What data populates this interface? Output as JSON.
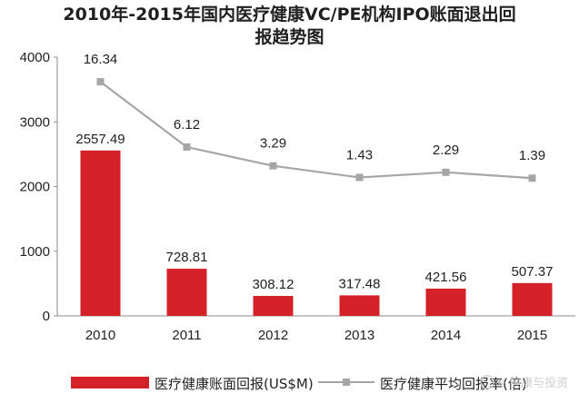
{
  "title": {
    "line1": "2010年-2015年国内医疗健康VC/PE机构IPO账面退出回",
    "line2": "报趋势图"
  },
  "chart_data": {
    "type": "bar+line",
    "categories": [
      "2010",
      "2011",
      "2012",
      "2013",
      "2014",
      "2015"
    ],
    "ylim": [
      0,
      4000
    ],
    "yticks": [
      "0",
      "1000",
      "2000",
      "3000",
      "4000"
    ],
    "grid": false,
    "legend_position": "bottom",
    "series": [
      {
        "name": "医疗健康账面回报(US$M)",
        "type": "bar",
        "color": "#d42127",
        "values": [
          2557.49,
          728.81,
          308.12,
          317.48,
          421.56,
          507.37
        ],
        "labels": [
          "2557.49",
          "728.81",
          "308.12",
          "317.48",
          "421.56",
          "507.37"
        ]
      },
      {
        "name": "医疗健康平均回报率(倍)",
        "type": "line",
        "color": "#a6a6a6",
        "values": [
          16.34,
          6.12,
          3.29,
          1.43,
          2.29,
          1.39
        ],
        "labels": [
          "16.34",
          "6.12",
          "3.29",
          "1.43",
          "2.29",
          "1.39"
        ],
        "plotted_on_left_axis": [
          3620,
          2610,
          2320,
          2140,
          2220,
          2130
        ]
      }
    ]
  },
  "watermark": "e 健康与投资"
}
